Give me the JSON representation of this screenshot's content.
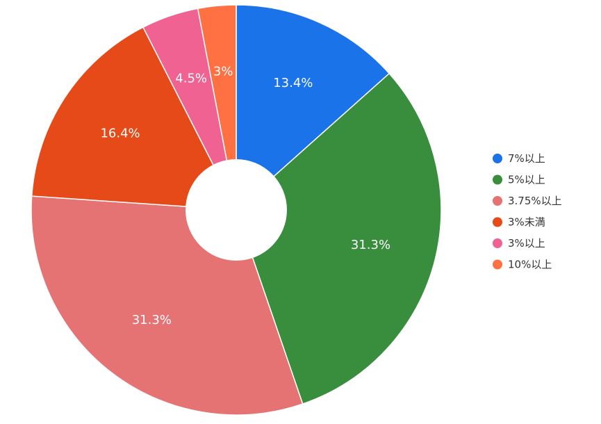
{
  "chart_data": {
    "type": "pie",
    "donut": true,
    "legend_position": "right",
    "categories": [
      "7%以上",
      "5%以上",
      "3.75%以上",
      "3%未満",
      "3%以上",
      "10%以上"
    ],
    "values": [
      13.4,
      31.3,
      31.3,
      16.4,
      4.5,
      3.0
    ],
    "value_labels": [
      "13.4%",
      "31.3%",
      "31.3%",
      "16.4%",
      "4.5%",
      "3%"
    ],
    "colors": [
      "#1a73e8",
      "#388e3c",
      "#e57373",
      "#e64a19",
      "#f06292",
      "#ff7043"
    ]
  }
}
